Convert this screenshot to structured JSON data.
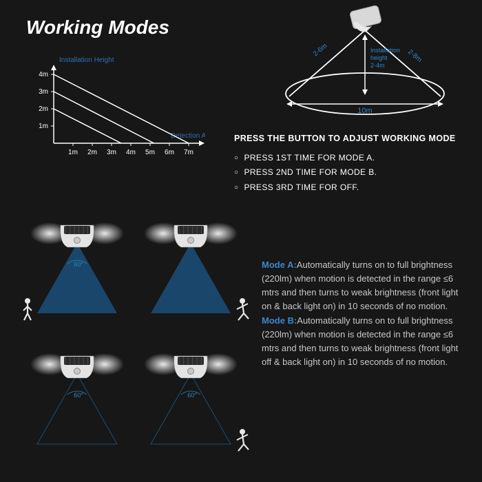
{
  "title": "Working Modes",
  "chart": {
    "type": "line",
    "y_label": "Installation Height",
    "x_label": "Detection Area",
    "y_ticks": [
      "1m",
      "2m",
      "3m",
      "4m"
    ],
    "x_ticks": [
      "1m",
      "2m",
      "3m",
      "4m",
      "5m",
      "6m",
      "7m"
    ],
    "label_color": "#2f6fb3",
    "axis_color": "#ffffff",
    "tick_fontsize": 10,
    "label_fontsize": 10,
    "lines": [
      {
        "y_start_unit": 4,
        "x_end_unit": 7
      },
      {
        "y_start_unit": 3,
        "x_end_unit": 5.2
      },
      {
        "y_start_unit": 2,
        "x_end_unit": 3.5
      }
    ],
    "line_color": "#ffffff",
    "line_width": 1.5
  },
  "cone": {
    "left_label": "2-6m",
    "right_label": "2-8m",
    "height_label_1": "Installation",
    "height_label_2": "height",
    "height_label_3": "2-4m",
    "diameter_label": "10m",
    "text_color": "#2f88c6"
  },
  "instructions": {
    "heading": "PRESS THE BUTTON TO ADJUST WORKING MODE",
    "items": [
      "PRESS 1ST TIME FOR MODE A.",
      "PRESS 2ND TIME FOR MODE B.",
      "PRESS 3RD TIME FOR OFF."
    ]
  },
  "lights": {
    "angle_label": "60°",
    "beam_color": "#1b4f7a",
    "glow_color": "#ffffff",
    "rows": [
      {
        "beams_on": true,
        "person_left": "walk",
        "person_right": "run"
      },
      {
        "beams_on": false,
        "person_left": null,
        "person_right": "run"
      }
    ]
  },
  "description": {
    "mode_a_label": "Mode A:",
    "mode_a_text": "Automatically turns on to full brightness (220lm) when motion is detected in the range ≤6 mtrs and then turns to weak brightness (front light on & back light on) in 10 seconds of no motion.",
    "mode_b_label": "Mode B:",
    "mode_b_text": "Automatically turns on to full brightness (220lm) when motion is detected in the range ≤6 mtrs and then turns to weak brightness (front light off & back light on) in 10 seconds of no motion."
  }
}
